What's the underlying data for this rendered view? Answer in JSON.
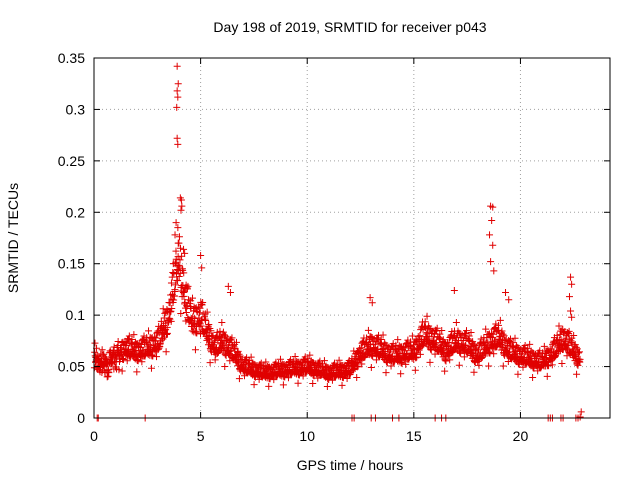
{
  "chart_data": {
    "type": "scatter",
    "title": "Day 198 of 2019, SRMTID for receiver p043",
    "xlabel": "GPS time / hours",
    "ylabel": "SRMTID / TECUs",
    "xlim": [
      0,
      24.2
    ],
    "ylim": [
      0,
      0.35
    ],
    "x_ticks": [
      0,
      5,
      10,
      15,
      20
    ],
    "x_tick_labels": [
      "0",
      "5",
      "10",
      "15",
      "20"
    ],
    "y_ticks": [
      0,
      0.05,
      0.1,
      0.15,
      0.2,
      0.25,
      0.3,
      0.35
    ],
    "y_tick_labels": [
      "0",
      "0.05",
      "0.1",
      "0.15",
      "0.2",
      "0.25",
      "0.3",
      "0.35"
    ],
    "grid": true,
    "marker": "+",
    "marker_color": "#e00000",
    "series": [
      {
        "name": "SRMTID p043",
        "trend": [
          [
            0.0,
            0.06
          ],
          [
            0.5,
            0.05
          ],
          [
            1.0,
            0.06
          ],
          [
            1.5,
            0.065
          ],
          [
            2.0,
            0.062
          ],
          [
            2.5,
            0.065
          ],
          [
            3.0,
            0.07
          ],
          [
            3.5,
            0.095
          ],
          [
            3.8,
            0.13
          ],
          [
            4.0,
            0.15
          ],
          [
            4.3,
            0.11
          ],
          [
            4.6,
            0.09
          ],
          [
            5.0,
            0.095
          ],
          [
            5.3,
            0.08
          ],
          [
            5.7,
            0.065
          ],
          [
            6.0,
            0.072
          ],
          [
            6.5,
            0.062
          ],
          [
            7.0,
            0.048
          ],
          [
            8.0,
            0.042
          ],
          [
            9.0,
            0.045
          ],
          [
            10.0,
            0.048
          ],
          [
            11.0,
            0.042
          ],
          [
            12.0,
            0.045
          ],
          [
            12.5,
            0.06
          ],
          [
            13.0,
            0.068
          ],
          [
            14.0,
            0.058
          ],
          [
            14.5,
            0.06
          ],
          [
            15.0,
            0.062
          ],
          [
            15.5,
            0.078
          ],
          [
            16.0,
            0.072
          ],
          [
            16.5,
            0.062
          ],
          [
            17.0,
            0.072
          ],
          [
            17.5,
            0.068
          ],
          [
            18.0,
            0.058
          ],
          [
            18.5,
            0.07
          ],
          [
            19.0,
            0.075
          ],
          [
            19.5,
            0.062
          ],
          [
            20.0,
            0.058
          ],
          [
            20.5,
            0.055
          ],
          [
            21.0,
            0.052
          ],
          [
            21.5,
            0.06
          ],
          [
            22.0,
            0.075
          ],
          [
            22.5,
            0.062
          ],
          [
            22.8,
            0.055
          ]
        ],
        "peaks": [
          [
            3.9,
            0.342
          ],
          [
            3.95,
            0.325
          ],
          [
            3.9,
            0.318
          ],
          [
            3.93,
            0.312
          ],
          [
            3.88,
            0.302
          ],
          [
            3.9,
            0.272
          ],
          [
            3.93,
            0.266
          ],
          [
            4.05,
            0.214
          ],
          [
            4.1,
            0.212
          ],
          [
            4.12,
            0.206
          ],
          [
            4.08,
            0.202
          ],
          [
            3.85,
            0.19
          ],
          [
            3.8,
            0.178
          ],
          [
            3.95,
            0.17
          ],
          [
            4.2,
            0.164
          ],
          [
            4.25,
            0.16
          ],
          [
            5.0,
            0.158
          ],
          [
            5.05,
            0.146
          ],
          [
            6.3,
            0.128
          ],
          [
            6.4,
            0.122
          ],
          [
            12.95,
            0.117
          ],
          [
            13.05,
            0.112
          ],
          [
            16.9,
            0.124
          ],
          [
            18.6,
            0.206
          ],
          [
            18.7,
            0.205
          ],
          [
            18.65,
            0.192
          ],
          [
            18.55,
            0.178
          ],
          [
            18.7,
            0.168
          ],
          [
            18.6,
            0.152
          ],
          [
            18.75,
            0.143
          ],
          [
            19.3,
            0.122
          ],
          [
            19.45,
            0.115
          ],
          [
            22.35,
            0.137
          ],
          [
            22.4,
            0.13
          ],
          [
            22.3,
            0.118
          ],
          [
            22.35,
            0.104
          ],
          [
            22.4,
            0.098
          ]
        ],
        "zeros": [
          0.15,
          0.2,
          2.4,
          12.1,
          12.2,
          13.0,
          13.2,
          14.0,
          14.3,
          16.0,
          16.3,
          16.5,
          21.3,
          21.4,
          21.5,
          21.9,
          22.0,
          22.6,
          22.7
        ],
        "end_points": [
          [
            22.85,
            0.006
          ],
          [
            22.8,
            0.001
          ]
        ]
      }
    ]
  }
}
